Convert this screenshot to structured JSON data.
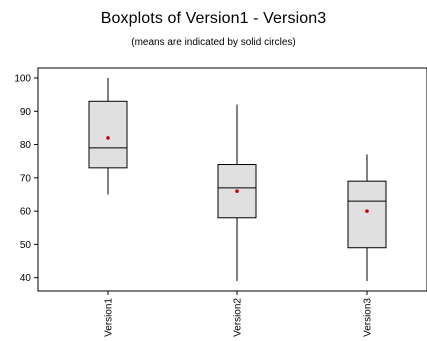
{
  "chart_data": {
    "type": "boxplot",
    "title": "Boxplots of Version1 - Version3",
    "subtitle": "(means are indicated by solid circles)",
    "xlabel": "",
    "ylabel": "",
    "ylim": [
      36,
      103
    ],
    "yticks": [
      40,
      50,
      60,
      70,
      80,
      90,
      100
    ],
    "categories": [
      "Version1",
      "Version2",
      "Version3"
    ],
    "boxes": [
      {
        "name": "Version1",
        "whisker_low": 65,
        "q1": 73,
        "median": 79,
        "q3": 93,
        "whisker_high": 100,
        "mean": 82
      },
      {
        "name": "Version2",
        "whisker_low": 39,
        "q1": 58,
        "median": 67,
        "q3": 74,
        "whisker_high": 92,
        "mean": 66
      },
      {
        "name": "Version3",
        "whisker_low": 39,
        "q1": 49,
        "median": 63,
        "q3": 69,
        "whisker_high": 77,
        "mean": 60
      }
    ],
    "grid": false,
    "legend": "none",
    "colors": {
      "box_fill": "#e0e0e0",
      "box_stroke": "#000000",
      "mean_marker": "#cc0000",
      "axis": "#000000"
    }
  }
}
